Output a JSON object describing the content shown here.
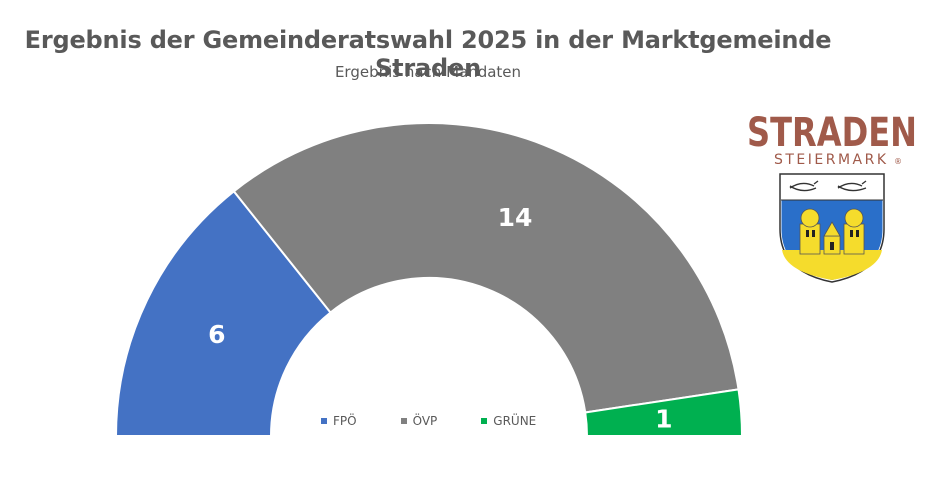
{
  "chart_data": {
    "type": "pie",
    "variant": "half-donut",
    "title": "Ergebnis der Gemeinderatswahl 2025 in der Marktgemeinde Straden",
    "subtitle": "Ergebnis nach Mandaten",
    "categories": [
      "FPÖ",
      "ÖVP",
      "GRÜNE"
    ],
    "values": [
      6,
      14,
      1
    ],
    "colors": [
      "#4472c4",
      "#808080",
      "#00b050"
    ],
    "data_labels": [
      "6",
      "14",
      "1"
    ],
    "legend_position": "bottom"
  },
  "logo": {
    "wordmark": "STRADEN",
    "region": "STEIERMARK",
    "registered": "®",
    "wordmark_color": "#a05a4a",
    "shield_colors": [
      "#ffffff",
      "#2a6fc9",
      "#f5dc2c",
      "#222222"
    ]
  }
}
